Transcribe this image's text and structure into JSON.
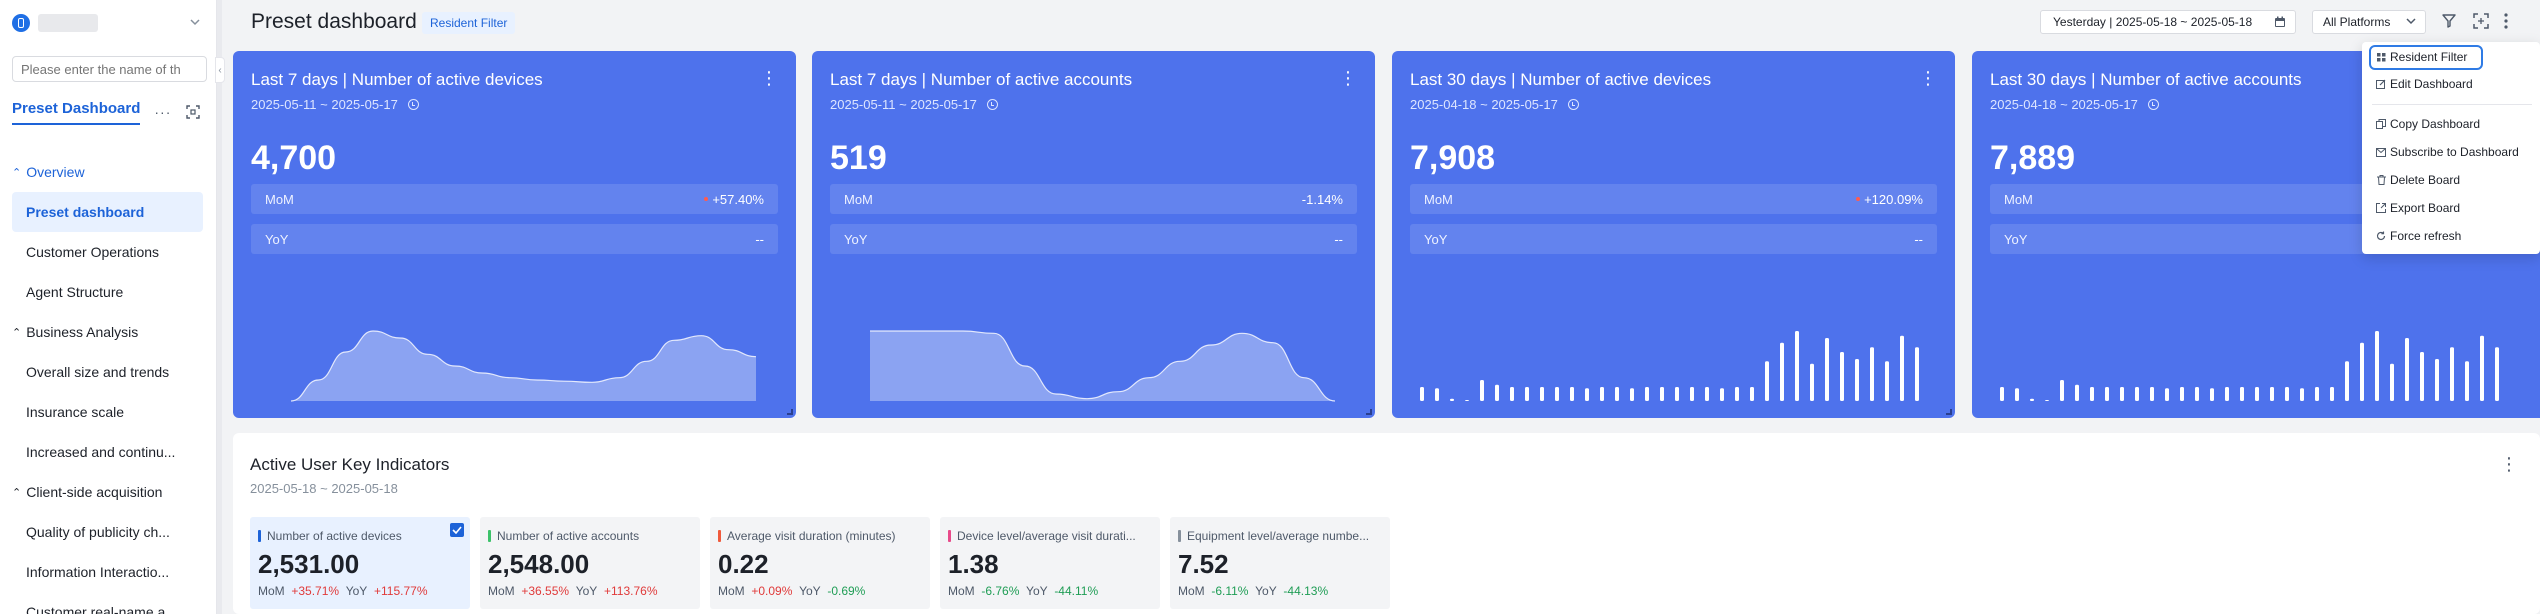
{
  "sidebar": {
    "search_placeholder": "Please enter the name of th",
    "tab_label": "Preset Dashboard",
    "more_label": "···",
    "groups": [
      {
        "label": "Overview",
        "items": [
          "Preset dashboard",
          "Customer Operations",
          "Agent Structure"
        ]
      },
      {
        "label": "Business Analysis",
        "items": [
          "Overall size and trends",
          "Insurance scale",
          "Increased and continu..."
        ]
      },
      {
        "label": "Client-side acquisition",
        "items": [
          "Quality of publicity ch...",
          "Information Interactio...",
          "Customer real-name a..."
        ]
      }
    ]
  },
  "header": {
    "title": "Preset dashboard",
    "resident_filter_tag": "Resident Filter",
    "date_range": "Yesterday | 2025-05-18 ~ 2025-05-18",
    "platform": "All Platforms"
  },
  "cards": [
    {
      "title": "Last 7 days | Number of active devices",
      "range": "2025-05-11 ~ 2025-05-17",
      "value": "4,700",
      "mom_label": "MoM",
      "mom_value": "+57.40%",
      "mom_dot": true,
      "yoy_label": "YoY",
      "yoy_value": "--",
      "chart": "area",
      "series": [
        0,
        18,
        42,
        60,
        54,
        40,
        30,
        24,
        20,
        18,
        17,
        16,
        20,
        34,
        52,
        56,
        44,
        38
      ]
    },
    {
      "title": "Last 7 days | Number of active accounts",
      "range": "2025-05-11 ~ 2025-05-17",
      "value": "519",
      "mom_label": "MoM",
      "mom_value": "-1.14%",
      "mom_dot": false,
      "yoy_label": "YoY",
      "yoy_value": "--",
      "chart": "area",
      "series": [
        60,
        60,
        60,
        60,
        58,
        30,
        6,
        2,
        8,
        20,
        34,
        48,
        58,
        50,
        20,
        0
      ]
    },
    {
      "title": "Last 30 days | Number of active devices",
      "range": "2025-04-18 ~ 2025-05-17",
      "value": "7,908",
      "mom_label": "MoM",
      "mom_value": "+120.09%",
      "mom_dot": true,
      "yoy_label": "YoY",
      "yoy_value": "--",
      "chart": "bar",
      "series": [
        12,
        11,
        2,
        0,
        18,
        14,
        12,
        12,
        12,
        12,
        12,
        11,
        12,
        12,
        11,
        12,
        12,
        12,
        12,
        12,
        11,
        12,
        12,
        34,
        50,
        60,
        32,
        54,
        42,
        36,
        46,
        34,
        56,
        46
      ]
    },
    {
      "title": "Last 30 days | Number of active accounts",
      "range": "2025-04-18 ~ 2025-05-17",
      "value": "7,889",
      "mom_label": "MoM",
      "mom_value": "",
      "mom_dot": false,
      "yoy_label": "YoY",
      "yoy_value": "",
      "chart": "bar",
      "series": [
        12,
        11,
        2,
        0,
        18,
        14,
        12,
        12,
        12,
        12,
        12,
        11,
        12,
        12,
        11,
        12,
        12,
        12,
        12,
        12,
        11,
        12,
        12,
        34,
        50,
        60,
        32,
        54,
        42,
        36,
        46,
        34,
        56,
        46
      ]
    }
  ],
  "dropdown": {
    "items": [
      "Resident Filter",
      "Edit Dashboard",
      "Copy Dashboard",
      "Subscribe to Dashboard",
      "Delete Board",
      "Export Board",
      "Force refresh"
    ]
  },
  "panel": {
    "title": "Active User Key Indicators",
    "range": "2025-05-18 ~ 2025-05-18",
    "kpis": [
      {
        "label": "Number of active devices",
        "value": "2,531.00",
        "mom": "+35.71%",
        "yoy": "+115.77%",
        "mom_dir": "up",
        "yoy_dir": "up",
        "color": "#1d63d8",
        "selected": true
      },
      {
        "label": "Number of active accounts",
        "value": "2,548.00",
        "mom": "+36.55%",
        "yoy": "+113.76%",
        "mom_dir": "up",
        "yoy_dir": "up",
        "color": "#3cc26a",
        "selected": false
      },
      {
        "label": "Average visit duration (minutes)",
        "value": "0.22",
        "mom": "+0.09%",
        "yoy": "-0.69%",
        "mom_dir": "up",
        "yoy_dir": "down",
        "color": "#f05a3c",
        "selected": false
      },
      {
        "label": "Device level/average visit durati...",
        "value": "1.38",
        "mom": "-6.76%",
        "yoy": "-44.11%",
        "mom_dir": "down",
        "yoy_dir": "down",
        "color": "#e84a8a",
        "selected": false
      },
      {
        "label": "Equipment level/average numbe...",
        "value": "7.52",
        "mom": "-6.11%",
        "yoy": "-44.13%",
        "mom_dir": "down",
        "yoy_dir": "down",
        "color": "#86909c",
        "selected": false
      }
    ],
    "mom_label": "MoM",
    "yoy_label": "YoY"
  }
}
